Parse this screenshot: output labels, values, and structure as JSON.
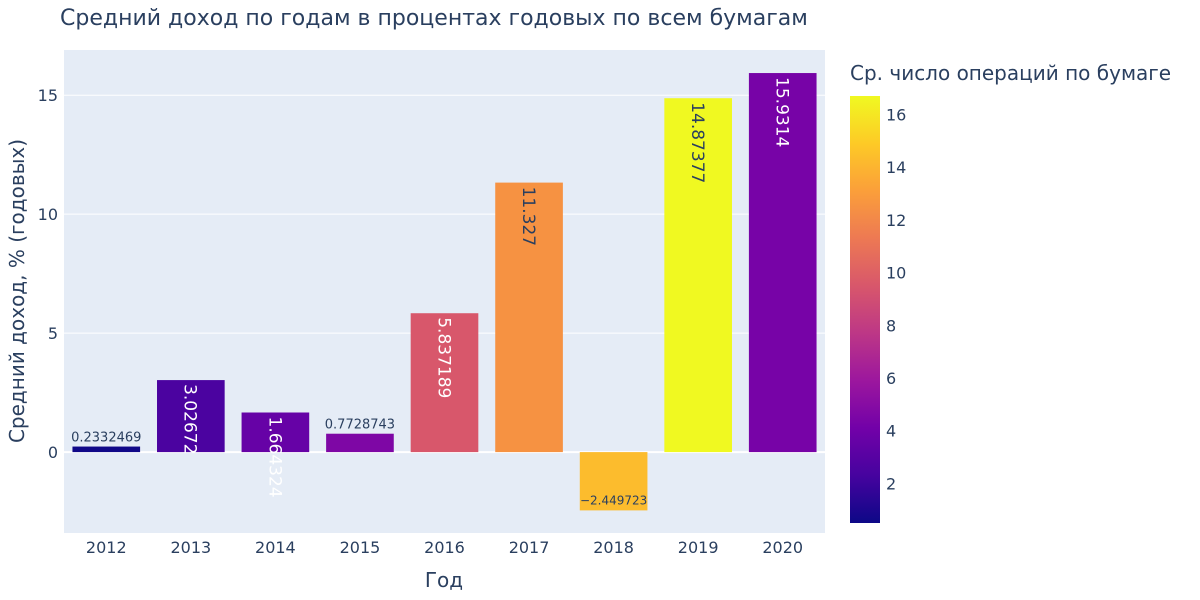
{
  "chart_data": {
    "type": "bar",
    "title": "Средний доход по годам в процентах годовых по всем бумагам",
    "xlabel": "Год",
    "ylabel": "Средний доход, % (годовых)",
    "categories": [
      "2012",
      "2013",
      "2014",
      "2015",
      "2016",
      "2017",
      "2018",
      "2019",
      "2020"
    ],
    "values": [
      0.2332469,
      3.02672,
      1.664324,
      0.7728743,
      5.837189,
      11.327,
      -2.449723,
      14.87377,
      15.9314
    ],
    "value_labels": [
      "0.2332469",
      "3.02672",
      "1.664324",
      "0.7728743",
      "5.837189",
      "11.327",
      "−2.449723",
      "14.87377",
      "15.9314"
    ],
    "color_values": [
      0.6,
      2.5,
      3.6,
      4.6,
      9.5,
      12.5,
      14.3,
      16.7,
      4.3
    ],
    "ylim": [
      -3.4,
      16.9
    ],
    "yticks": [
      0,
      5,
      10,
      15
    ],
    "grid": true,
    "colorbar": {
      "title": "Ср. число операций по бумаге",
      "range": [
        0.5,
        16.7
      ],
      "ticks": [
        2,
        4,
        6,
        8,
        10,
        12,
        14,
        16
      ],
      "colorscale": "plasma"
    },
    "colors": {
      "plot_bg": "#e5ecf6",
      "grid": "#ffffff",
      "text": "#2a3f5f"
    }
  }
}
